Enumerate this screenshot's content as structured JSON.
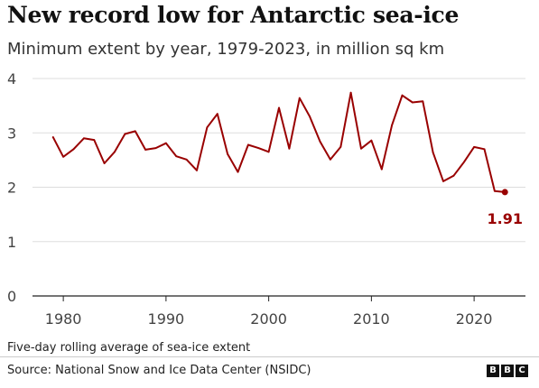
{
  "title": "New record low for Antarctic sea-ice",
  "subtitle": "Minimum extent by year, 1979-2023, in million sq km",
  "footnote": "Five-day rolling average of sea-ice extent",
  "source": "Source: National Snow and Ice Data Center (NSIDC)",
  "logo": [
    "B",
    "B",
    "C"
  ],
  "colors": {
    "line": "#990000",
    "grid": "#dddddd",
    "axis": "#222222",
    "text": "#444444"
  },
  "chart_data": {
    "type": "line",
    "title": "New record low for Antarctic sea-ice",
    "xlabel": "",
    "ylabel": "",
    "xlim": [
      1977,
      2025
    ],
    "ylim": [
      0,
      4
    ],
    "xticks": [
      1980,
      1990,
      2000,
      2010,
      2020
    ],
    "yticks": [
      0,
      1,
      2,
      3,
      4
    ],
    "grid": true,
    "legend": "none",
    "series": [
      {
        "x": [
          1979,
          1980,
          1981,
          1982,
          1983,
          1984,
          1985,
          1986,
          1987,
          1988,
          1989,
          1990,
          1991,
          1992,
          1993,
          1994,
          1995,
          1996,
          1997,
          1998,
          1999,
          2000,
          2001,
          2002,
          2003,
          2004,
          2005,
          2006,
          2007,
          2008,
          2009,
          2010,
          2011,
          2012,
          2013,
          2014,
          2015,
          2016,
          2017,
          2018,
          2019,
          2020,
          2021,
          2022,
          2023
        ],
        "values": [
          2.92,
          2.56,
          2.7,
          2.9,
          2.87,
          2.44,
          2.65,
          2.98,
          3.03,
          2.69,
          2.72,
          2.81,
          2.57,
          2.51,
          2.31,
          3.1,
          3.35,
          2.61,
          2.28,
          2.78,
          2.72,
          2.65,
          3.46,
          2.71,
          3.64,
          3.3,
          2.84,
          2.51,
          2.74,
          3.74,
          2.71,
          2.86,
          2.33,
          3.14,
          3.69,
          3.56,
          3.58,
          2.64,
          2.11,
          2.21,
          2.46,
          2.74,
          2.7,
          1.93,
          1.91
        ]
      }
    ],
    "annotation": {
      "x": 2023,
      "y": 1.91,
      "text": "1.91"
    }
  }
}
